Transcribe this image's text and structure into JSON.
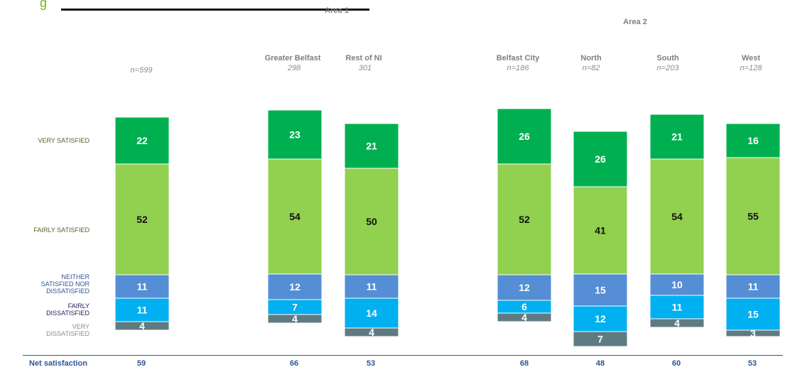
{
  "figure": {
    "fragment": "g"
  },
  "headers": {
    "area1": "Area 1",
    "area2": "Area 2"
  },
  "columns": [
    {
      "name": "",
      "n": "n=599"
    },
    {
      "name": "Greater Belfast",
      "n": "298"
    },
    {
      "name": "Rest of NI",
      "n": "301"
    },
    {
      "name": "Belfast City",
      "n": "n=186"
    },
    {
      "name": "North",
      "n": "n=82"
    },
    {
      "name": "South",
      "n": "n=203"
    },
    {
      "name": "West",
      "n": "n=128"
    }
  ],
  "categories": {
    "very_satisfied": "VERY SATISFIED",
    "fairly_satisfied": "FAIRLY SATISFIED",
    "neither_line1": "NEITHER",
    "neither_line2": "SATISFIED NOR",
    "neither_line3": "DISSATISFIED",
    "fairly_dis_line1": "FAIRLY",
    "fairly_dis_line2": "DISSATISFIED",
    "very_dis_line1": "VERY",
    "very_dis_line2": "DISSATISFIED"
  },
  "net_satisfaction": {
    "label": "Net satisfaction",
    "values": [
      "59",
      "66",
      "53",
      "68",
      "48",
      "60",
      "53"
    ]
  },
  "colors": {
    "very_satisfied": "#00b050",
    "fairly_satisfied": "#92d050",
    "neither": "#558ed5",
    "fairly_dissatisfied": "#00b0f0",
    "very_dissatisfied": "#5f7b82",
    "label_very_satisfied": "#4f6228",
    "label_fairly_satisfied": "#4f6228",
    "label_neither": "#2f5597",
    "label_fairly_dissatisfied": "#1f1f5f",
    "label_very_dissatisfied": "#8c8c8c",
    "net": "#2f5597"
  },
  "chart_data": {
    "type": "bar",
    "stacked": true,
    "categories": [
      "n=599",
      "Greater Belfast",
      "Rest of NI",
      "Belfast City",
      "North",
      "South",
      "West"
    ],
    "series": [
      {
        "name": "VERY SATISFIED",
        "values": [
          22,
          23,
          21,
          26,
          26,
          21,
          16
        ]
      },
      {
        "name": "FAIRLY SATISFIED",
        "values": [
          52,
          54,
          50,
          52,
          41,
          54,
          55
        ]
      },
      {
        "name": "NEITHER SATISFIED NOR DISSATISFIED",
        "values": [
          11,
          12,
          11,
          12,
          15,
          10,
          11
        ]
      },
      {
        "name": "FAIRLY DISSATISFIED",
        "values": [
          11,
          7,
          14,
          6,
          12,
          11,
          15
        ]
      },
      {
        "name": "VERY DISSATISFIED",
        "values": [
          4,
          4,
          4,
          4,
          7,
          4,
          3
        ]
      }
    ],
    "net_satisfaction": [
      59,
      66,
      53,
      68,
      48,
      60,
      53
    ],
    "legend": "left"
  }
}
